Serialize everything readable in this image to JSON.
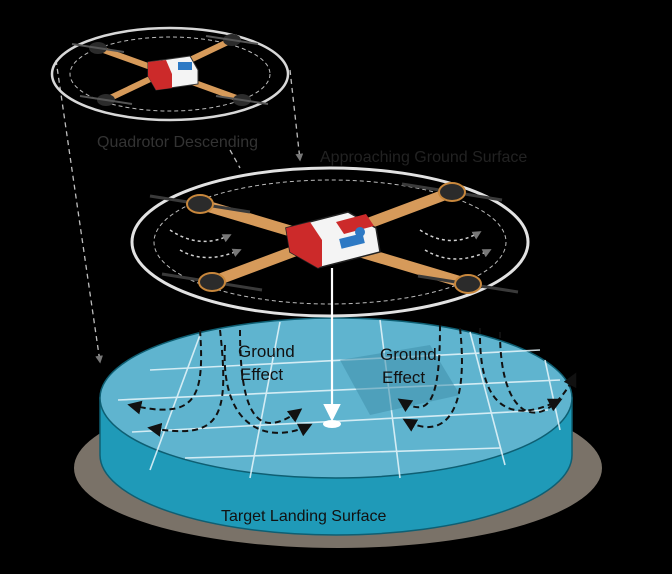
{
  "labels": {
    "descending": "Quadrotor Descending",
    "approaching": "Approaching Ground Surface",
    "ground_effect_left": [
      "Ground",
      "Effect"
    ],
    "ground_effect_right": [
      "Ground",
      "Effect"
    ],
    "landing_surface": "Target Landing Surface"
  },
  "colors": {
    "background": "#000000",
    "surface_top": "#5fb4cf",
    "surface_side": "#1f9ab8",
    "surface_shadow": "#7a7268",
    "arm": "#d69a5a",
    "body_red": "#cc2a2a",
    "body_white": "#f4f4f4",
    "body_blue": "#2d79c4",
    "motor": "#2b2b2b",
    "guard_ring": "#d8d8d8",
    "airflow": "#111111"
  },
  "icons": {
    "drone_top": "quadrotor-icon",
    "drone_mid": "quadrotor-icon",
    "descent_arrow": "arrow-down-icon"
  }
}
